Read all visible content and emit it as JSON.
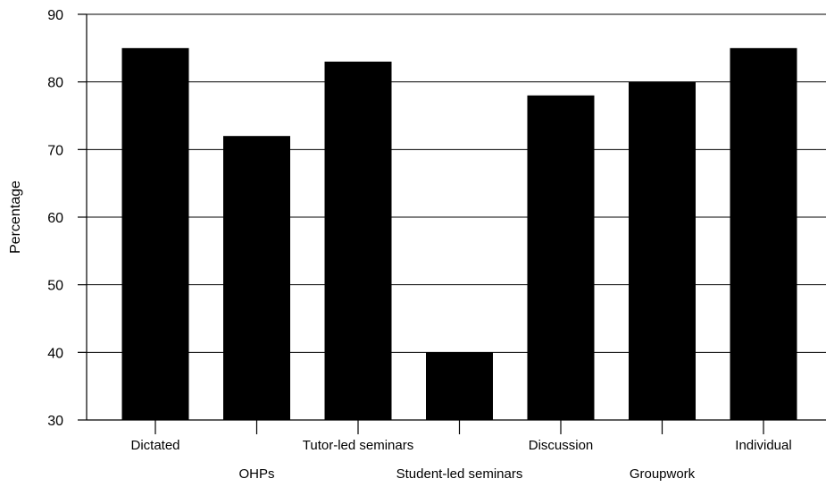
{
  "chart_data": {
    "type": "bar",
    "title": "",
    "xlabel": "",
    "ylabel": "Percentage",
    "categories": [
      "Dictated",
      "OHPs",
      "Tutor-led seminars",
      "Student-led seminars",
      "Discussion",
      "Groupwork",
      "Individual"
    ],
    "values": [
      85,
      72,
      83,
      40,
      78,
      80,
      85
    ],
    "ylim": [
      30,
      90
    ],
    "yticks": [
      30,
      40,
      50,
      60,
      70,
      80,
      90
    ],
    "grid": true,
    "bar_color": "#000000",
    "category_label_rows": [
      0,
      1,
      0,
      1,
      0,
      1,
      0
    ]
  }
}
